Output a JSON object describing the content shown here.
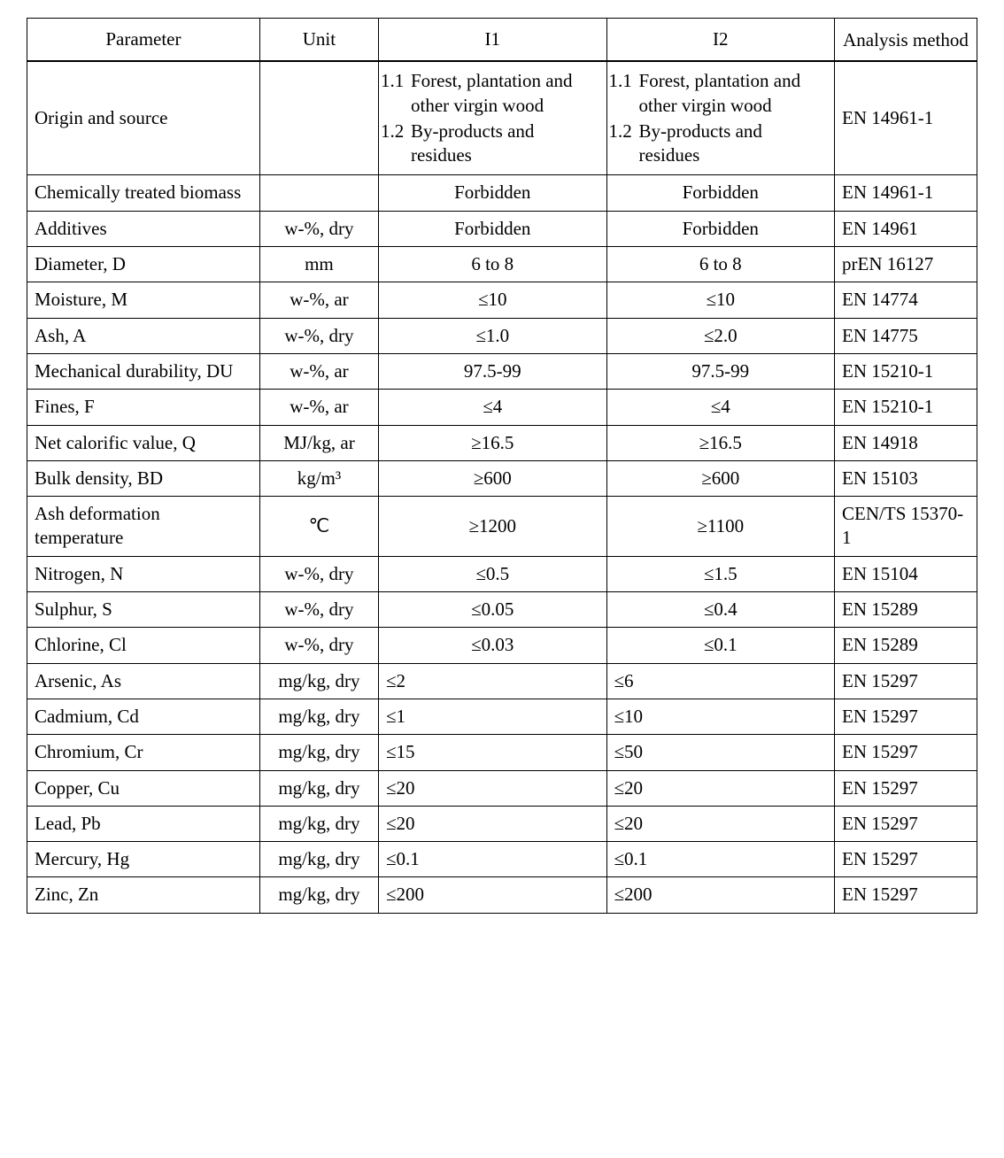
{
  "headers": {
    "parameter": "Parameter",
    "unit": "Unit",
    "i1": "I1",
    "i2": "I2",
    "method": "Analysis method"
  },
  "units": {
    "w_dry": "w-%, dry",
    "w_ar": "w-%, ar",
    "mm": "mm",
    "mj_kg_ar": "MJ/kg, ar",
    "kg_m3": "kg/m³",
    "deg_c": "℃",
    "mg_kg_dry": "mg/kg, dry"
  },
  "origin": {
    "n1": "1.1",
    "t1": "Forest, plantation and other virgin wood",
    "n2": "1.2",
    "t2": "By-products and residues"
  },
  "rows": {
    "r0": {
      "param": "Origin and source",
      "unit": "",
      "i1": "",
      "i2": "",
      "method": "EN 14961-1",
      "origin": true,
      "i_align": "l"
    },
    "r1": {
      "param": "Chemically treated biomass",
      "unit": "",
      "i1": "Forbidden",
      "i2": "Forbidden",
      "method": "EN 14961-1",
      "i_align": "c"
    },
    "r2": {
      "param": "Additives",
      "unit": "w_dry",
      "i1": "Forbidden",
      "i2": "Forbidden",
      "method": "EN 14961",
      "i_align": "c"
    },
    "r3": {
      "param": "Diameter, D",
      "unit": "mm",
      "i1": "6 to 8",
      "i2": "6 to 8",
      "method": "prEN 16127",
      "i_align": "c"
    },
    "r4": {
      "param": "Moisture, M",
      "unit": "w_ar",
      "i1": "≤10",
      "i2": "≤10",
      "method": "EN 14774",
      "i_align": "c"
    },
    "r5": {
      "param": "Ash, A",
      "unit": "w_dry",
      "i1": "≤1.0",
      "i2": "≤2.0",
      "method": "EN 14775",
      "i_align": "c"
    },
    "r6": {
      "param": "Mechanical durability, DU",
      "unit": "w_ar",
      "i1": "97.5-99",
      "i2": "97.5-99",
      "method": "EN 15210-1",
      "i_align": "c"
    },
    "r7": {
      "param": "Fines, F",
      "unit": "w_ar",
      "i1": "≤4",
      "i2": "≤4",
      "method": "EN 15210-1",
      "i_align": "c"
    },
    "r8": {
      "param": "Net calorific value, Q",
      "unit": "mj_kg_ar",
      "i1": "≥16.5",
      "i2": "≥16.5",
      "method": "EN 14918",
      "i_align": "c"
    },
    "r9": {
      "param": "Bulk density, BD",
      "unit": "kg_m3",
      "i1": "≥600",
      "i2": "≥600",
      "method": "EN 15103",
      "i_align": "c"
    },
    "r10": {
      "param": "Ash deformation temperature",
      "unit": "deg_c",
      "i1": "≥1200",
      "i2": "≥1100",
      "method": "CEN/TS 15370-1",
      "i_align": "c"
    },
    "r11": {
      "param": "Nitrogen, N",
      "unit": "w_dry",
      "i1": "≤0.5",
      "i2": "≤1.5",
      "method": "EN 15104",
      "i_align": "c"
    },
    "r12": {
      "param": "Sulphur, S",
      "unit": "w_dry",
      "i1": "≤0.05",
      "i2": "≤0.4",
      "method": "EN 15289",
      "i_align": "c"
    },
    "r13": {
      "param": "Chlorine, Cl",
      "unit": "w_dry",
      "i1": "≤0.03",
      "i2": "≤0.1",
      "method": "EN 15289",
      "i_align": "c"
    },
    "r14": {
      "param": "Arsenic, As",
      "unit": "mg_kg_dry",
      "i1": "≤2",
      "i2": "≤6",
      "method": "EN 15297",
      "i_align": "l"
    },
    "r15": {
      "param": "Cadmium, Cd",
      "unit": "mg_kg_dry",
      "i1": "≤1",
      "i2": "≤10",
      "method": "EN 15297",
      "i_align": "l"
    },
    "r16": {
      "param": "Chromium, Cr",
      "unit": "mg_kg_dry",
      "i1": "≤15",
      "i2": "≤50",
      "method": "EN 15297",
      "i_align": "l"
    },
    "r17": {
      "param": "Copper, Cu",
      "unit": "mg_kg_dry",
      "i1": "≤20",
      "i2": "≤20",
      "method": "EN 15297",
      "i_align": "l"
    },
    "r18": {
      "param": "Lead, Pb",
      "unit": "mg_kg_dry",
      "i1": "≤20",
      "i2": "≤20",
      "method": "EN 15297",
      "i_align": "l"
    },
    "r19": {
      "param": "Mercury, Hg",
      "unit": "mg_kg_dry",
      "i1": "≤0.1",
      "i2": "≤0.1",
      "method": "EN 15297",
      "i_align": "l"
    },
    "r20": {
      "param": "Zinc, Zn",
      "unit": "mg_kg_dry",
      "i1": "≤200",
      "i2": "≤200",
      "method": "EN 15297",
      "i_align": "l"
    }
  },
  "rowOrder": [
    "r0",
    "r1",
    "r2",
    "r3",
    "r4",
    "r5",
    "r6",
    "r7",
    "r8",
    "r9",
    "r10",
    "r11",
    "r12",
    "r13",
    "r14",
    "r15",
    "r16",
    "r17",
    "r18",
    "r19",
    "r20"
  ],
  "style": {
    "font_family": "Times New Roman",
    "font_size_pt": 16,
    "border_color": "#000000",
    "background": "#ffffff",
    "text_color": "#000000"
  }
}
